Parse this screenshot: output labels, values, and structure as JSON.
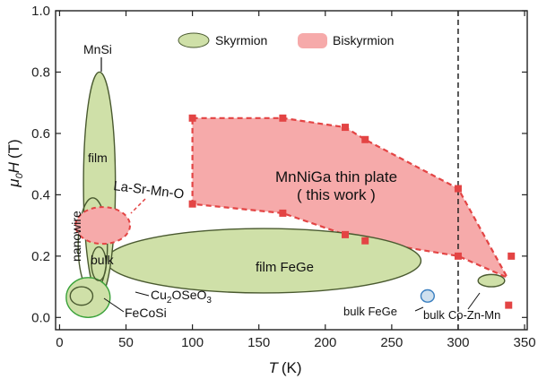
{
  "chart_data": {
    "type": "scatter",
    "xlabel": "T (K)",
    "ylabel": "μ0H (T)",
    "x_label_parts": {
      "symbol": "T",
      "unit": "(K)"
    },
    "y_label_parts": {
      "mu": "μ",
      "sub": "0",
      "H": "H",
      "unit": "(T)"
    },
    "xlim": [
      -3,
      352
    ],
    "ylim": [
      -0.04,
      1.0
    ],
    "x_ticks": [
      {
        "v": 0,
        "label": "0"
      },
      {
        "v": 50,
        "label": "50"
      },
      {
        "v": 100,
        "label": "100"
      },
      {
        "v": 150,
        "label": "150"
      },
      {
        "v": 200,
        "label": "200"
      },
      {
        "v": 250,
        "label": "250"
      },
      {
        "v": 300,
        "label": "300"
      },
      {
        "v": 350,
        "label": "350"
      }
    ],
    "y_ticks": [
      {
        "v": 0.0,
        "label": "0.0"
      },
      {
        "v": 0.2,
        "label": "0.2"
      },
      {
        "v": 0.4,
        "label": "0.4"
      },
      {
        "v": 0.6,
        "label": "0.6"
      },
      {
        "v": 0.8,
        "label": "0.8"
      },
      {
        "v": 1.0,
        "label": "1.0"
      }
    ],
    "grid": false,
    "legend_position": "top-center",
    "legend": [
      {
        "name": "Skyrmion",
        "color": "#cfe0a8",
        "edge": "#4a5a30"
      },
      {
        "name": "Biskyrmion",
        "color": "#f6aaaa",
        "edge": "#e34444"
      }
    ],
    "reference_line": {
      "x": 300,
      "style": "dashed"
    },
    "series": [
      {
        "name": "MnNiGa thin plate (this work)",
        "marker": "square",
        "color": "#e34444",
        "points": [
          {
            "x": 100,
            "y": 0.65
          },
          {
            "x": 100,
            "y": 0.37
          },
          {
            "x": 168,
            "y": 0.65
          },
          {
            "x": 168,
            "y": 0.34
          },
          {
            "x": 215,
            "y": 0.62
          },
          {
            "x": 215,
            "y": 0.27
          },
          {
            "x": 230,
            "y": 0.58
          },
          {
            "x": 230,
            "y": 0.25
          },
          {
            "x": 300,
            "y": 0.42
          },
          {
            "x": 300,
            "y": 0.2
          },
          {
            "x": 340,
            "y": 0.2
          },
          {
            "x": 338,
            "y": 0.04
          }
        ]
      }
    ],
    "regions": [
      {
        "kind": "ellipse",
        "phase": "skyrmion",
        "label": "MnSi film",
        "x": [
          18,
          42
        ],
        "y": [
          0.07,
          0.8
        ]
      },
      {
        "kind": "ellipse",
        "phase": "skyrmion",
        "label": "MnSi nanowire",
        "x": [
          14,
          36
        ],
        "y": [
          0.08,
          0.39
        ]
      },
      {
        "kind": "ellipse",
        "phase": "skyrmion",
        "label": "MnSi bulk",
        "x": [
          24,
          35
        ],
        "y": [
          0.12,
          0.23
        ]
      },
      {
        "kind": "ellipse",
        "phase": "skyrmion",
        "label": "Cu2OSeO3",
        "x": [
          5,
          38
        ],
        "y": [
          0.0,
          0.13
        ]
      },
      {
        "kind": "ellipse",
        "phase": "skyrmion",
        "label": "FeCoSi",
        "x": [
          8,
          25
        ],
        "y": [
          0.04,
          0.1
        ]
      },
      {
        "kind": "ellipse",
        "phase": "skyrmion",
        "label": "film FeGe",
        "x": [
          35,
          272
        ],
        "y": [
          0.08,
          0.29
        ]
      },
      {
        "kind": "ellipse",
        "phase": "skyrmion",
        "label": "bulk FeGe",
        "x": [
          272,
          282
        ],
        "y": [
          0.05,
          0.09
        ]
      },
      {
        "kind": "ellipse",
        "phase": "skyrmion",
        "label": "bulk Co-Zn-Mn",
        "x": [
          315,
          335
        ],
        "y": [
          0.1,
          0.14
        ]
      },
      {
        "kind": "ellipse",
        "phase": "biskyrmion",
        "label": "La-Sr-Mn-O",
        "x": [
          12,
          53
        ],
        "y": [
          0.24,
          0.36
        ]
      },
      {
        "kind": "polygon",
        "phase": "biskyrmion",
        "label": "MnNiGa thin plate (this work)",
        "series_ref": 0
      }
    ],
    "annotations": {
      "mnsi": "MnSi",
      "film": "film",
      "nanowire": "nanowire",
      "bulk": "bulk",
      "lasrmno": "La-Sr-Mn-O",
      "film_fege": "film FeGe",
      "mnniga_line1": "MnNiGa thin plate",
      "mnniga_line2": "( this work )",
      "cu2oseo3_a": "Cu",
      "cu2oseo3_b": "2",
      "cu2oseo3_c": "OSeO",
      "cu2oseo3_d": "3",
      "fecosi": "FeCoSi",
      "bulk_fege": "bulk FeGe",
      "bulk_cozn_a": "bulk",
      "bulk_cozn_b": "Co-Zn-Mn"
    }
  }
}
